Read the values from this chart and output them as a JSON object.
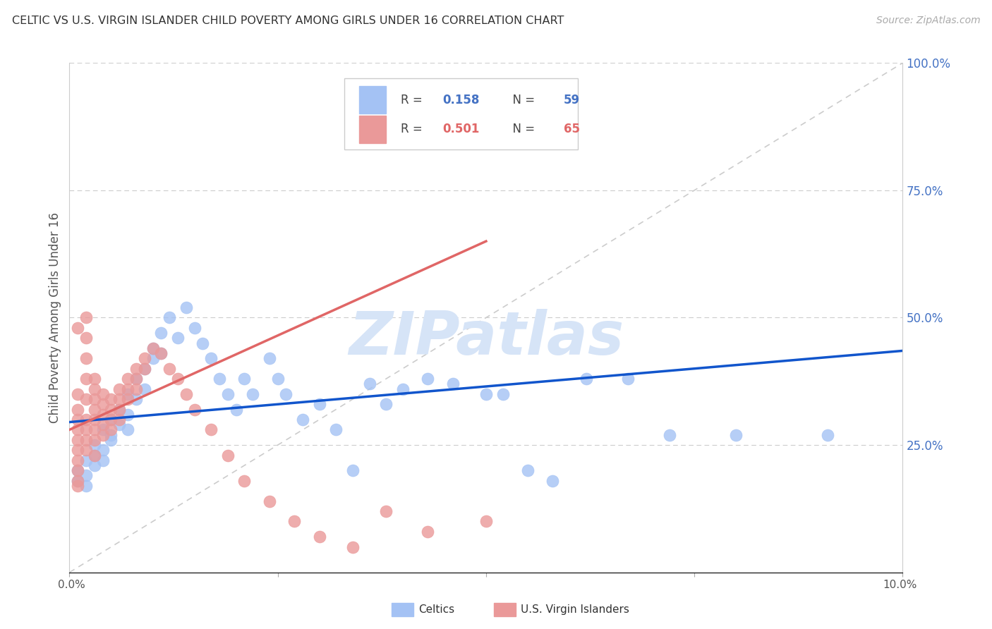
{
  "title": "CELTIC VS U.S. VIRGIN ISLANDER CHILD POVERTY AMONG GIRLS UNDER 16 CORRELATION CHART",
  "source": "Source: ZipAtlas.com",
  "ylabel": "Child Poverty Among Girls Under 16",
  "xlim": [
    0.0,
    0.1
  ],
  "ylim": [
    0.0,
    1.0
  ],
  "celtics_color": "#a4c2f4",
  "vi_color": "#ea9999",
  "celtics_line_color": "#1155cc",
  "vi_line_color": "#e06666",
  "diagonal_color": "#cccccc",
  "watermark_color": "#d6e4f7",
  "celtics_x": [
    0.001,
    0.001,
    0.002,
    0.002,
    0.002,
    0.003,
    0.003,
    0.003,
    0.004,
    0.004,
    0.004,
    0.005,
    0.005,
    0.005,
    0.006,
    0.006,
    0.007,
    0.007,
    0.007,
    0.008,
    0.008,
    0.009,
    0.009,
    0.01,
    0.01,
    0.011,
    0.011,
    0.012,
    0.013,
    0.014,
    0.015,
    0.016,
    0.017,
    0.018,
    0.019,
    0.02,
    0.021,
    0.022,
    0.024,
    0.025,
    0.026,
    0.028,
    0.03,
    0.032,
    0.034,
    0.036,
    0.038,
    0.04,
    0.043,
    0.046,
    0.05,
    0.052,
    0.055,
    0.058,
    0.062,
    0.067,
    0.072,
    0.08,
    0.091
  ],
  "celtics_y": [
    0.2,
    0.18,
    0.22,
    0.19,
    0.17,
    0.25,
    0.23,
    0.21,
    0.28,
    0.24,
    0.22,
    0.3,
    0.27,
    0.26,
    0.32,
    0.29,
    0.35,
    0.31,
    0.28,
    0.38,
    0.34,
    0.4,
    0.36,
    0.44,
    0.42,
    0.47,
    0.43,
    0.5,
    0.46,
    0.52,
    0.48,
    0.45,
    0.42,
    0.38,
    0.35,
    0.32,
    0.38,
    0.35,
    0.42,
    0.38,
    0.35,
    0.3,
    0.33,
    0.28,
    0.2,
    0.37,
    0.33,
    0.36,
    0.38,
    0.37,
    0.35,
    0.35,
    0.2,
    0.18,
    0.38,
    0.38,
    0.27,
    0.27,
    0.27
  ],
  "vi_x": [
    0.001,
    0.001,
    0.001,
    0.001,
    0.001,
    0.001,
    0.001,
    0.001,
    0.001,
    0.001,
    0.001,
    0.002,
    0.002,
    0.002,
    0.002,
    0.002,
    0.002,
    0.002,
    0.002,
    0.002,
    0.003,
    0.003,
    0.003,
    0.003,
    0.003,
    0.003,
    0.003,
    0.003,
    0.004,
    0.004,
    0.004,
    0.004,
    0.004,
    0.005,
    0.005,
    0.005,
    0.005,
    0.006,
    0.006,
    0.006,
    0.006,
    0.007,
    0.007,
    0.007,
    0.008,
    0.008,
    0.008,
    0.009,
    0.009,
    0.01,
    0.011,
    0.012,
    0.013,
    0.014,
    0.015,
    0.017,
    0.019,
    0.021,
    0.024,
    0.027,
    0.03,
    0.034,
    0.038,
    0.043,
    0.05
  ],
  "vi_y": [
    0.28,
    0.32,
    0.35,
    0.3,
    0.26,
    0.24,
    0.22,
    0.2,
    0.18,
    0.17,
    0.48,
    0.5,
    0.46,
    0.42,
    0.38,
    0.34,
    0.3,
    0.28,
    0.26,
    0.24,
    0.38,
    0.36,
    0.34,
    0.32,
    0.3,
    0.28,
    0.26,
    0.23,
    0.35,
    0.33,
    0.31,
    0.29,
    0.27,
    0.34,
    0.32,
    0.3,
    0.28,
    0.36,
    0.34,
    0.32,
    0.3,
    0.38,
    0.36,
    0.34,
    0.4,
    0.38,
    0.36,
    0.42,
    0.4,
    0.44,
    0.43,
    0.4,
    0.38,
    0.35,
    0.32,
    0.28,
    0.23,
    0.18,
    0.14,
    0.1,
    0.07,
    0.05,
    0.12,
    0.08,
    0.1
  ],
  "celtics_line_x": [
    0.0,
    0.1
  ],
  "celtics_line_y": [
    0.295,
    0.435
  ],
  "vi_line_x": [
    0.0,
    0.05
  ],
  "vi_line_y": [
    0.28,
    0.65
  ]
}
